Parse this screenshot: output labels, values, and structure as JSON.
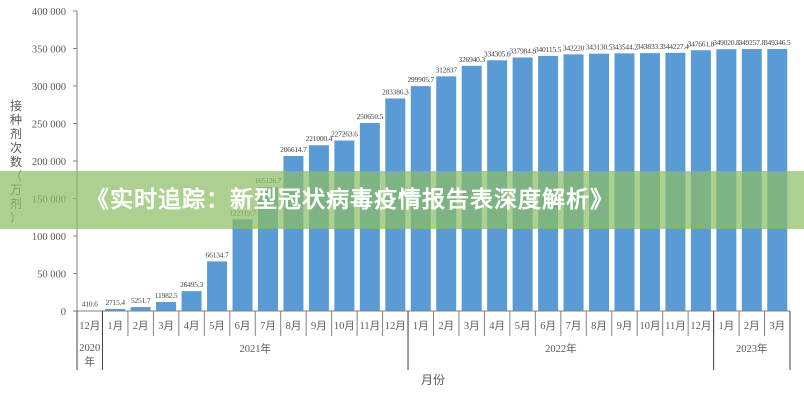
{
  "chart_data": {
    "type": "bar",
    "title": "",
    "xlabel": "月份",
    "ylabel": "接种剂次数（万剂）",
    "ylim": [
      0,
      400000
    ],
    "yticks": [
      "0",
      "50 000",
      "100 000",
      "150 000",
      "200 000",
      "250 000",
      "300 000",
      "350 000",
      "400 000"
    ],
    "categories": [
      "12月",
      "1月",
      "2月",
      "3月",
      "4月",
      "5月",
      "6月",
      "7月",
      "8月",
      "9月",
      "10月",
      "11月",
      "12月",
      "1月",
      "2月",
      "3月",
      "4月",
      "5月",
      "6月",
      "7月",
      "8月",
      "9月",
      "10月",
      "11月",
      "12月",
      "1月",
      "2月",
      "3月"
    ],
    "years": [
      {
        "label": "2020年",
        "start": 0,
        "count": 1
      },
      {
        "label": "2021年",
        "start": 1,
        "count": 12
      },
      {
        "label": "2022年",
        "start": 13,
        "count": 12
      },
      {
        "label": "2023年",
        "start": 25,
        "count": 3
      }
    ],
    "values": [
      410.6,
      2715.4,
      5251.7,
      11982.5,
      26495.3,
      66134.7,
      122319.7,
      165126.7,
      206614.7,
      221000.4,
      227263.6,
      250650.5,
      283386.3,
      299905.7,
      312837,
      326940.3,
      334305.6,
      337984.8,
      340115.5,
      342220,
      343130.5,
      343544.2,
      343833.3,
      344227.4,
      347661.8,
      349020.8,
      349257.8,
      349346.5
    ],
    "value_labels": [
      "410.6",
      "2715.4",
      "5251.7",
      "11982.5",
      "26495.3",
      "66134.7",
      "122319.7",
      "165126.7",
      "206614.7",
      "221000.4",
      "227263.6",
      "250650.5",
      "283386.3",
      "299905.7",
      "312837",
      "326940.3",
      "334305.6",
      "337984.8",
      "340115.5",
      "342220",
      "343130.5",
      "343544.2",
      "343833.3",
      "344227.4",
      "347661.8",
      "349020.8",
      "349257.8",
      "349346.5"
    ],
    "bar_color": "#5b9bd5",
    "grid": false,
    "legend": null
  },
  "banner": {
    "text": "《实时追踪：新型冠状病毒疫情报告表深度解析》",
    "color": "#8cbe64"
  },
  "axis": {
    "ylabel_chars": [
      "接",
      "种",
      "剂",
      "次",
      "数",
      "（",
      "万",
      "剂",
      "）"
    ],
    "xlabel": "月份"
  }
}
